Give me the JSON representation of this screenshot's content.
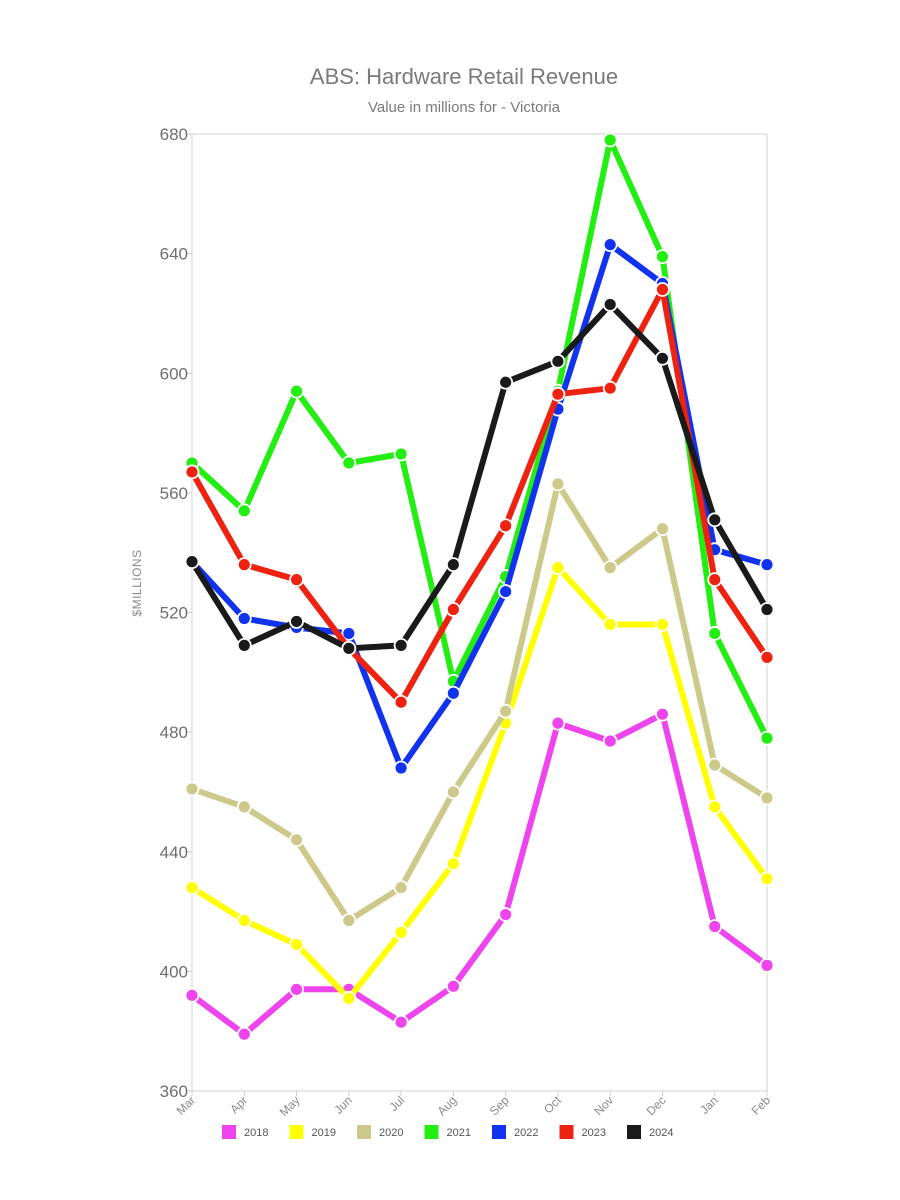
{
  "chart_data": {
    "type": "line",
    "title": "ABS: Hardware Retail Revenue",
    "subtitle": "Value in millions for - Victoria",
    "ylabel": "$MILLIONS",
    "xlabel": "",
    "categories": [
      "Mar",
      "Apr",
      "May",
      "Jun",
      "Jul",
      "Aug",
      "Sep",
      "Oct",
      "Nov",
      "Dec",
      "Jan",
      "Feb"
    ],
    "ylim": [
      360,
      680
    ],
    "yticks": [
      360,
      400,
      440,
      480,
      520,
      560,
      600,
      640,
      680
    ],
    "ytick_labels": [
      "360",
      "400",
      "440",
      "480",
      "520",
      "560",
      "600",
      "640",
      "680"
    ],
    "grid": false,
    "legend_position": "bottom",
    "series": [
      {
        "name": "2018",
        "color": "#ee44ee",
        "values": [
          392,
          379,
          394,
          394,
          383,
          395,
          419,
          483,
          477,
          486,
          415,
          402
        ]
      },
      {
        "name": "2019",
        "color": "#ffff00",
        "values": [
          428,
          417,
          409,
          391,
          413,
          436,
          483,
          535,
          516,
          516,
          455,
          431
        ]
      },
      {
        "name": "2020",
        "color": "#cdc98a",
        "values": [
          461,
          455,
          444,
          417,
          428,
          460,
          487,
          563,
          535,
          548,
          469,
          458
        ]
      },
      {
        "name": "2021",
        "color": "#22ee11",
        "values": [
          570,
          554,
          594,
          570,
          573,
          497,
          532,
          594,
          678,
          639,
          513,
          478
        ]
      },
      {
        "name": "2022",
        "color": "#1133ee",
        "values": [
          537,
          518,
          515,
          513,
          468,
          493,
          527,
          588,
          643,
          630,
          541,
          536
        ]
      },
      {
        "name": "2023",
        "color": "#ee2211",
        "values": [
          567,
          536,
          531,
          508,
          490,
          521,
          549,
          593,
          595,
          628,
          531,
          505
        ]
      },
      {
        "name": "2024",
        "color": "#1a1a1a",
        "values": [
          537,
          509,
          517,
          508,
          509,
          536,
          597,
          604,
          623,
          605,
          551,
          521
        ]
      }
    ]
  }
}
